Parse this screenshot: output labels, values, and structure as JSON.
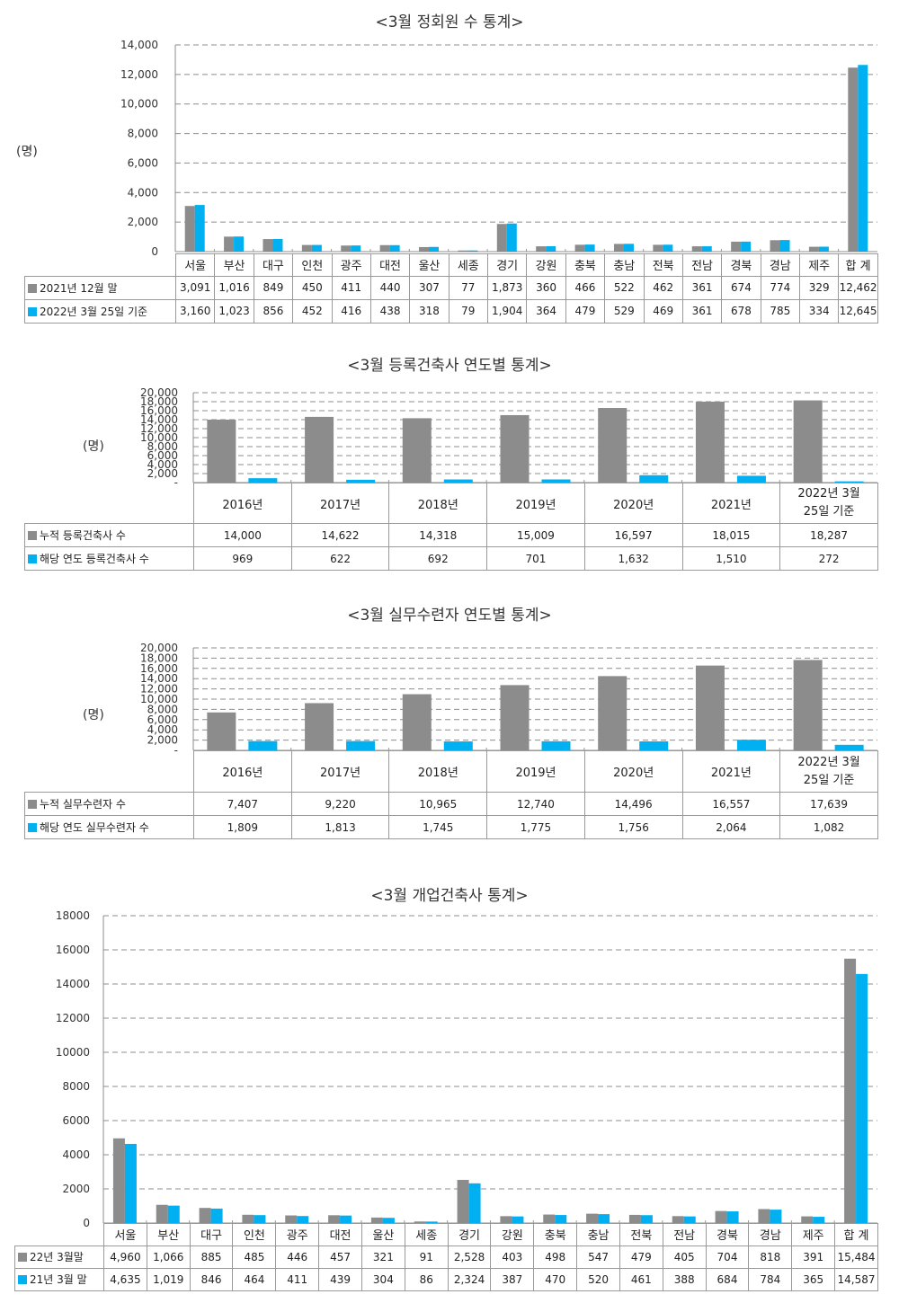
{
  "colors": {
    "series1": "#8c8c8c",
    "series2": "#00b0f0"
  },
  "chart_data": [
    {
      "type": "bar",
      "title": "<3월 정회원 수 통계>",
      "ylabel": "(명)",
      "ylim": [
        0,
        14000
      ],
      "yticks": [
        "14,000",
        "12,000",
        "10,000",
        "8,000",
        "6,000",
        "4,000",
        "2,000",
        "0"
      ],
      "categories": [
        "서울",
        "부산",
        "대구",
        "인천",
        "광주",
        "대전",
        "울산",
        "세종",
        "경기",
        "강원",
        "충북",
        "충남",
        "전북",
        "전남",
        "경북",
        "경남",
        "제주",
        "합 계"
      ],
      "series": [
        {
          "name": "2021년 12월 말",
          "values": [
            3091,
            1016,
            849,
            450,
            411,
            440,
            307,
            77,
            1873,
            360,
            466,
            522,
            462,
            361,
            674,
            774,
            329,
            12462
          ],
          "labels": [
            "3,091",
            "1,016",
            "849",
            "450",
            "411",
            "440",
            "307",
            "77",
            "1,873",
            "360",
            "466",
            "522",
            "462",
            "361",
            "674",
            "774",
            "329",
            "12,462"
          ]
        },
        {
          "name": "2022년 3월 25일 기준",
          "values": [
            3160,
            1023,
            856,
            452,
            416,
            438,
            318,
            79,
            1904,
            364,
            479,
            529,
            469,
            361,
            678,
            785,
            334,
            12645
          ],
          "labels": [
            "3,160",
            "1,023",
            "856",
            "452",
            "416",
            "438",
            "318",
            "79",
            "1,904",
            "364",
            "479",
            "529",
            "469",
            "361",
            "678",
            "785",
            "334",
            "12,645"
          ]
        }
      ]
    },
    {
      "type": "bar",
      "title": "<3월 등록건축사 연도별 통계>",
      "ylabel": "(명)",
      "ylim": [
        0,
        20000
      ],
      "yticks": [
        "20,000",
        "18,000",
        "16,000",
        "14,000",
        "12,000",
        "10,000",
        "8,000",
        "6,000",
        "4,000",
        "2,000",
        "-"
      ],
      "categories": [
        [
          "2016년"
        ],
        [
          "2017년"
        ],
        [
          "2018년"
        ],
        [
          "2019년"
        ],
        [
          "2020년"
        ],
        [
          "2021년"
        ],
        [
          "2022년 3월",
          "25일 기준"
        ]
      ],
      "series": [
        {
          "name": "누적 등록건축사 수",
          "values": [
            14000,
            14622,
            14318,
            15009,
            16597,
            18015,
            18287
          ],
          "labels": [
            "14,000",
            "14,622",
            "14,318",
            "15,009",
            "16,597",
            "18,015",
            "18,287"
          ]
        },
        {
          "name": "해당 연도 등록건축사 수",
          "values": [
            969,
            622,
            692,
            701,
            1632,
            1510,
            272
          ],
          "labels": [
            "969",
            "622",
            "692",
            "701",
            "1,632",
            "1,510",
            "272"
          ]
        }
      ]
    },
    {
      "type": "bar",
      "title": "<3월 실무수련자 연도별 통계>",
      "ylabel": "(명)",
      "ylim": [
        0,
        20000
      ],
      "yticks": [
        "20,000",
        "18,000",
        "16,000",
        "14,000",
        "12,000",
        "10,000",
        "8,000",
        "6,000",
        "4,000",
        "2,000",
        "-"
      ],
      "categories": [
        [
          "2016년"
        ],
        [
          "2017년"
        ],
        [
          "2018년"
        ],
        [
          "2019년"
        ],
        [
          "2020년"
        ],
        [
          "2021년"
        ],
        [
          "2022년 3월",
          "25일 기준"
        ]
      ],
      "series": [
        {
          "name": "누적 실무수련자 수",
          "values": [
            7407,
            9220,
            10965,
            12740,
            14496,
            16557,
            17639
          ],
          "labels": [
            "7,407",
            "9,220",
            "10,965",
            "12,740",
            "14,496",
            "16,557",
            "17,639"
          ]
        },
        {
          "name": "해당 연도 실무수련자 수",
          "values": [
            1809,
            1813,
            1745,
            1775,
            1756,
            2064,
            1082
          ],
          "labels": [
            "1,809",
            "1,813",
            "1,745",
            "1,775",
            "1,756",
            "2,064",
            "1,082"
          ]
        }
      ]
    },
    {
      "type": "bar",
      "title": "<3월 개업건축사 통계>",
      "ylabel": "",
      "ylim": [
        0,
        18000
      ],
      "yticks": [
        "18000",
        "16000",
        "14000",
        "12000",
        "10000",
        "8000",
        "6000",
        "4000",
        "2000",
        "0"
      ],
      "categories": [
        "서울",
        "부산",
        "대구",
        "인천",
        "광주",
        "대전",
        "울산",
        "세종",
        "경기",
        "강원",
        "충북",
        "충남",
        "전북",
        "전남",
        "경북",
        "경남",
        "제주",
        "합 계"
      ],
      "series": [
        {
          "name": "22년 3월말",
          "values": [
            4960,
            1066,
            885,
            485,
            446,
            457,
            321,
            91,
            2528,
            403,
            498,
            547,
            479,
            405,
            704,
            818,
            391,
            15484
          ],
          "labels": [
            "4,960",
            "1,066",
            "885",
            "485",
            "446",
            "457",
            "321",
            "91",
            "2,528",
            "403",
            "498",
            "547",
            "479",
            "405",
            "704",
            "818",
            "391",
            "15,484"
          ]
        },
        {
          "name": "21년 3월 말",
          "values": [
            4635,
            1019,
            846,
            464,
            411,
            439,
            304,
            86,
            2324,
            387,
            470,
            520,
            461,
            388,
            684,
            784,
            365,
            14587
          ],
          "labels": [
            "4,635",
            "1,019",
            "846",
            "464",
            "411",
            "439",
            "304",
            "86",
            "2,324",
            "387",
            "470",
            "520",
            "461",
            "388",
            "684",
            "784",
            "365",
            "14,587"
          ]
        }
      ]
    }
  ]
}
